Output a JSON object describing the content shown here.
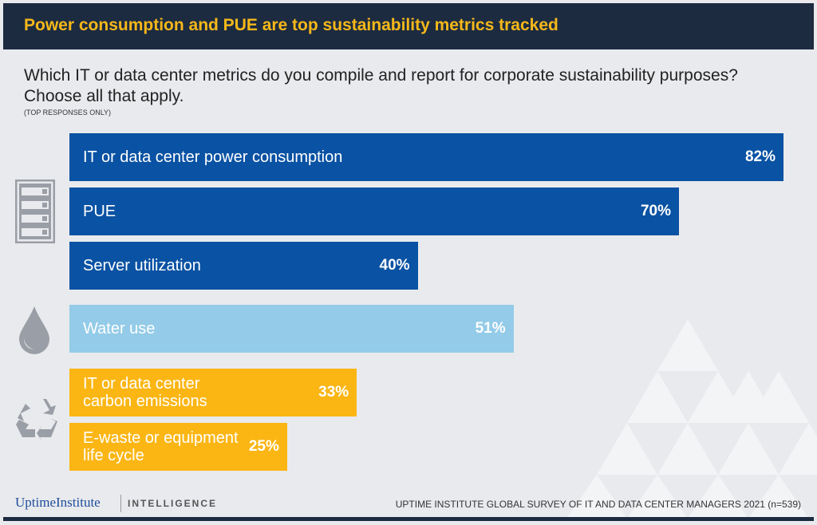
{
  "header": {
    "title": "Power consumption and PUE are top sustainability metrics tracked"
  },
  "question": "Which IT or data center metrics do you compile and report for corporate sustainability purposes? Choose all that apply.",
  "note": "(TOP RESPONSES ONLY)",
  "chart_data": {
    "type": "bar",
    "orientation": "horizontal",
    "categories": [
      "IT or data center power consumption",
      "PUE",
      "Server utilization",
      "Water use",
      "IT or data center carbon emissions",
      "E-waste or equipment life cycle"
    ],
    "values": [
      82,
      70,
      40,
      51,
      33,
      25
    ],
    "data_labels": [
      "82%",
      "70%",
      "40%",
      "51%",
      "33%",
      "25%"
    ],
    "colors": [
      "#0a52a3",
      "#0a52a3",
      "#0a52a3",
      "#93cbe8",
      "#fbb614",
      "#fbb614"
    ],
    "groups": [
      {
        "icon": "server-rack-icon",
        "items": [
          0,
          1,
          2
        ]
      },
      {
        "icon": "water-drop-icon",
        "items": [
          3
        ]
      },
      {
        "icon": "recycle-icon",
        "items": [
          4,
          5
        ]
      }
    ],
    "xlim": [
      0,
      100
    ],
    "grid": false
  },
  "footer": {
    "logo": "UptimeInstitute",
    "intelligence": "INTELLIGENCE",
    "source": "UPTIME INSTITUTE GLOBAL SURVEY OF IT AND DATA CENTER MANAGERS 2021 (n=539)"
  }
}
